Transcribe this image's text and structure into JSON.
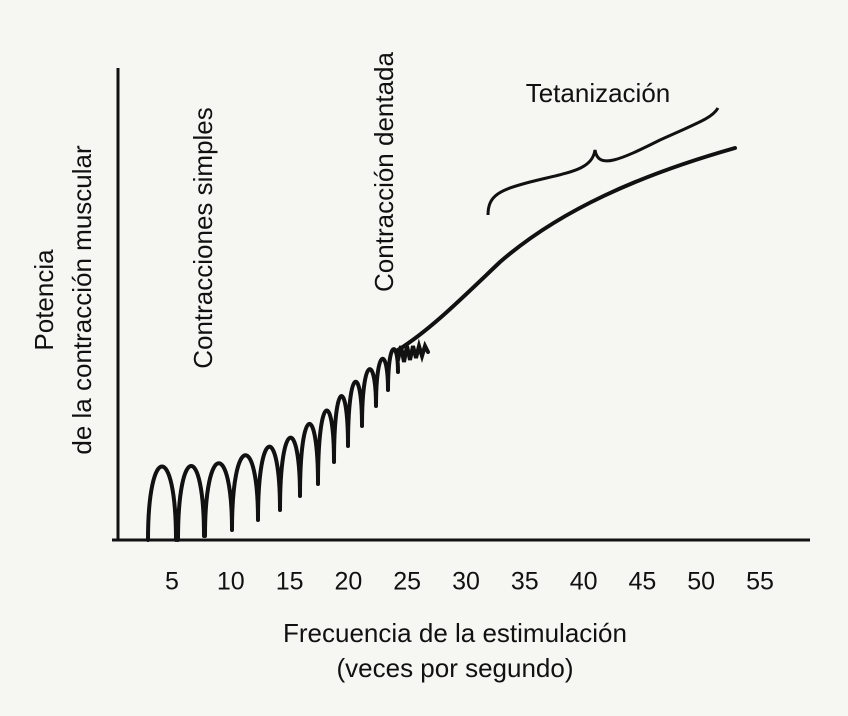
{
  "y_axis_label": [
    "Potencia",
    "de la contracción muscular"
  ],
  "annotations": {
    "simple": "Contracciones simples",
    "dentate": "Contracción dentada",
    "tetanus": "Tetanización"
  },
  "x_axis": {
    "ticks": [
      5,
      10,
      15,
      20,
      25,
      30,
      35,
      40,
      45,
      50,
      55
    ],
    "label": [
      "Frecuencia de la estimulación",
      "(veces por segundo)"
    ]
  }
}
